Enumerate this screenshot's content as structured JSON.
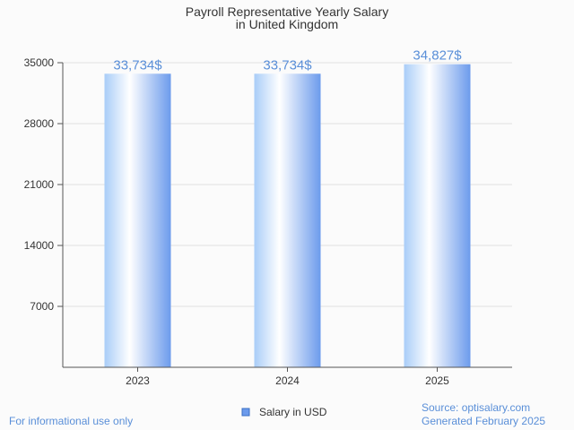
{
  "chart_data": {
    "type": "bar",
    "title_lines": [
      "Payroll Representative Yearly Salary",
      "in United Kingdom"
    ],
    "categories": [
      "2023",
      "2024",
      "2025"
    ],
    "series": [
      {
        "name": "Salary in USD",
        "values": [
          33734,
          33734,
          34827
        ]
      }
    ],
    "data_labels": [
      "33,734$",
      "33,734$",
      "34,827$"
    ],
    "yticks": [
      7000,
      14000,
      21000,
      28000,
      35000
    ],
    "ylim": [
      0,
      35000
    ],
    "grid": true,
    "legend_position": "bottom-center",
    "bar_color": "#6c9bec"
  },
  "footer": {
    "left": "For informational use only",
    "source": "Source: optisalary.com",
    "generated": "Generated February 2025"
  }
}
